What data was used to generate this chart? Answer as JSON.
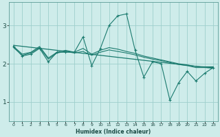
{
  "xlabel": "Humidex (Indice chaleur)",
  "bg_color": "#ceecea",
  "grid_color": "#9ecfcc",
  "line_color": "#1a7a6e",
  "xlim": [
    -0.5,
    23.5
  ],
  "ylim": [
    0.5,
    3.6
  ],
  "yticks": [
    1,
    2,
    3
  ],
  "xticks": [
    0,
    1,
    2,
    3,
    4,
    5,
    6,
    7,
    8,
    9,
    10,
    11,
    12,
    13,
    14,
    15,
    16,
    17,
    18,
    19,
    20,
    21,
    22,
    23
  ],
  "line_jagged": {
    "x": [
      0,
      1,
      2,
      3,
      4,
      5,
      6,
      7,
      8,
      9,
      10,
      11,
      12,
      13,
      14,
      15,
      16,
      17,
      18,
      19,
      20,
      21,
      22,
      23
    ],
    "y": [
      2.45,
      2.2,
      2.25,
      2.4,
      2.05,
      2.3,
      2.3,
      2.3,
      2.7,
      1.95,
      2.4,
      3.0,
      3.25,
      3.3,
      2.35,
      1.65,
      2.05,
      2.0,
      1.05,
      1.5,
      1.8,
      1.55,
      1.75,
      1.9
    ]
  },
  "line_smooth1": {
    "x": [
      0,
      1,
      2,
      3,
      4,
      5,
      6,
      7,
      8,
      9,
      10,
      11,
      12,
      13,
      14,
      15,
      16,
      17,
      18,
      19,
      20,
      21,
      22,
      23
    ],
    "y": [
      2.45,
      2.25,
      2.3,
      2.45,
      2.15,
      2.3,
      2.35,
      2.3,
      2.4,
      2.25,
      2.35,
      2.42,
      2.38,
      2.32,
      2.27,
      2.2,
      2.15,
      2.1,
      2.05,
      2.0,
      1.97,
      1.93,
      1.92,
      1.92
    ]
  },
  "line_smooth2": {
    "x": [
      0,
      1,
      2,
      3,
      4,
      5,
      6,
      7,
      8,
      9,
      10,
      11,
      12,
      13,
      14,
      15,
      16,
      17,
      18,
      19,
      20,
      21,
      22,
      23
    ],
    "y": [
      2.42,
      2.22,
      2.28,
      2.42,
      2.12,
      2.28,
      2.32,
      2.28,
      2.32,
      2.22,
      2.3,
      2.36,
      2.32,
      2.28,
      2.23,
      2.17,
      2.12,
      2.08,
      2.03,
      1.98,
      1.95,
      1.9,
      1.9,
      1.9
    ]
  },
  "line_regression": {
    "x": [
      0,
      23
    ],
    "y": [
      2.48,
      1.88
    ]
  }
}
